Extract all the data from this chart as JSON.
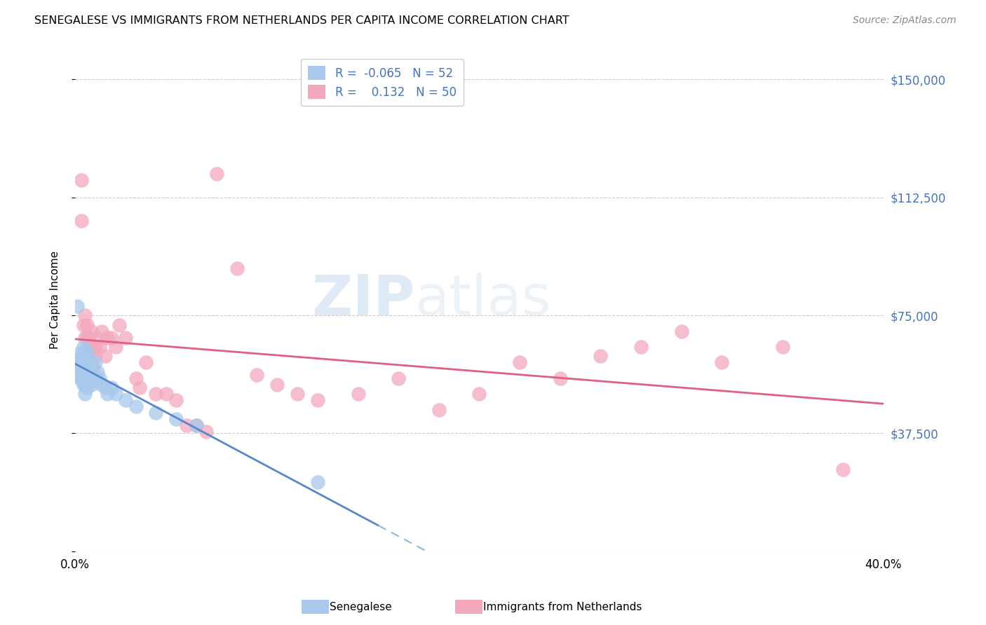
{
  "title": "SENEGALESE VS IMMIGRANTS FROM NETHERLANDS PER CAPITA INCOME CORRELATION CHART",
  "source": "Source: ZipAtlas.com",
  "ylabel": "Per Capita Income",
  "xlim": [
    0.0,
    0.4
  ],
  "ylim": [
    0,
    160000
  ],
  "yticks": [
    0,
    37500,
    75000,
    112500,
    150000
  ],
  "ytick_labels": [
    "",
    "$37,500",
    "$75,000",
    "$112,500",
    "$150,000"
  ],
  "xticks": [
    0.0,
    0.05,
    0.1,
    0.15,
    0.2,
    0.25,
    0.3,
    0.35,
    0.4
  ],
  "xtick_labels": [
    "0.0%",
    "",
    "",
    "",
    "",
    "",
    "",
    "",
    "40.0%"
  ],
  "senegalese_color": "#A8C8EC",
  "netherlands_color": "#F4A8BC",
  "trend_blue_solid": "#5588CC",
  "trend_blue_dashed": "#88BBDD",
  "trend_pink": "#E06080",
  "R_senegalese": -0.065,
  "N_senegalese": 52,
  "R_netherlands": 0.132,
  "N_netherlands": 50,
  "watermark_zip": "ZIP",
  "watermark_atlas": "atlas",
  "background_color": "#ffffff",
  "legend_text_color": "#4472C4",
  "ytick_color": "#4472C4",
  "senegalese_x": [
    0.001,
    0.002,
    0.002,
    0.002,
    0.003,
    0.003,
    0.003,
    0.003,
    0.003,
    0.004,
    0.004,
    0.004,
    0.004,
    0.004,
    0.004,
    0.004,
    0.005,
    0.005,
    0.005,
    0.005,
    0.005,
    0.005,
    0.005,
    0.005,
    0.006,
    0.006,
    0.006,
    0.006,
    0.006,
    0.007,
    0.007,
    0.007,
    0.008,
    0.008,
    0.008,
    0.009,
    0.009,
    0.01,
    0.01,
    0.011,
    0.012,
    0.013,
    0.015,
    0.016,
    0.018,
    0.02,
    0.025,
    0.03,
    0.04,
    0.05,
    0.06,
    0.12
  ],
  "senegalese_y": [
    78000,
    63000,
    59000,
    55000,
    62000,
    60000,
    58000,
    57000,
    55000,
    65000,
    63000,
    60000,
    58000,
    57000,
    55000,
    53000,
    64000,
    62000,
    60000,
    58000,
    57000,
    55000,
    53000,
    50000,
    63000,
    60000,
    58000,
    55000,
    52000,
    60000,
    57000,
    54000,
    60000,
    57000,
    53000,
    58000,
    54000,
    60000,
    55000,
    57000,
    55000,
    53000,
    52000,
    50000,
    52000,
    50000,
    48000,
    46000,
    44000,
    42000,
    40000,
    22000
  ],
  "netherlands_x": [
    0.003,
    0.003,
    0.004,
    0.005,
    0.005,
    0.006,
    0.006,
    0.007,
    0.007,
    0.008,
    0.008,
    0.009,
    0.01,
    0.01,
    0.011,
    0.012,
    0.013,
    0.015,
    0.016,
    0.018,
    0.02,
    0.022,
    0.025,
    0.03,
    0.032,
    0.035,
    0.04,
    0.045,
    0.05,
    0.055,
    0.06,
    0.065,
    0.07,
    0.08,
    0.09,
    0.1,
    0.11,
    0.12,
    0.14,
    0.16,
    0.18,
    0.2,
    0.22,
    0.24,
    0.26,
    0.28,
    0.3,
    0.32,
    0.35,
    0.38
  ],
  "netherlands_y": [
    118000,
    105000,
    72000,
    75000,
    68000,
    72000,
    68000,
    68000,
    65000,
    70000,
    65000,
    63000,
    65000,
    62000,
    68000,
    65000,
    70000,
    62000,
    68000,
    68000,
    65000,
    72000,
    68000,
    55000,
    52000,
    60000,
    50000,
    50000,
    48000,
    40000,
    40000,
    38000,
    120000,
    90000,
    56000,
    53000,
    50000,
    48000,
    50000,
    55000,
    45000,
    50000,
    60000,
    55000,
    62000,
    65000,
    70000,
    60000,
    65000,
    26000
  ]
}
